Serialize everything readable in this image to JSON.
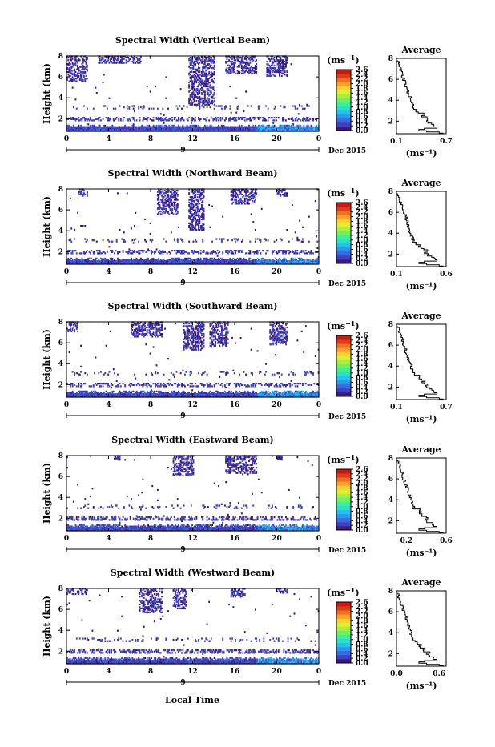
{
  "figure": {
    "xlabel": "Local Time",
    "date_label": "Dec 2015",
    "day_label": "9",
    "ylabel": "Height (km)",
    "colorbar_unit_base": "(ms",
    "colorbar_unit_exp": "−1",
    "colorbar_unit_close": ")",
    "average_title": "Average",
    "average_unit": "(ms⁻¹)",
    "colorbar_ticks": [
      "2.6",
      "2.4",
      "2.2",
      "2.0",
      "1.8",
      "1.6",
      "1.4",
      "1.2",
      "1.0",
      "0.8",
      "0.6",
      "0.4",
      "0.2",
      "0.0"
    ],
    "colormap": [
      "#3a1a7a",
      "#4040c0",
      "#3a6ae0",
      "#2f96f0",
      "#22c2ee",
      "#2ae0c8",
      "#3cf09a",
      "#6ef060",
      "#a8f040",
      "#dcf030",
      "#f8d030",
      "#f8a028",
      "#f07020",
      "#e03c18",
      "#c81a10"
    ]
  },
  "chart_data": [
    {
      "type": "heatmap",
      "title": "Spectral Width (Vertical Beam)",
      "x_ticks": [
        "0",
        "4",
        "8",
        "12",
        "16",
        "20",
        "0"
      ],
      "y_ticks": [
        "2",
        "4",
        "6",
        "8"
      ],
      "xlim": [
        0,
        24
      ],
      "ylim": [
        0.8,
        8.0
      ],
      "clim": [
        0.0,
        2.8
      ],
      "average": {
        "x_ticks": [
          "0.1",
          "0.7"
        ],
        "xlim": [
          0.1,
          0.7
        ],
        "y_ticks": [
          "2",
          "4",
          "6",
          "8"
        ],
        "ylim": [
          0.8,
          8.0
        ]
      }
    },
    {
      "type": "heatmap",
      "title": "Spectral Width (Northward Beam)",
      "x_ticks": [
        "0",
        "4",
        "8",
        "12",
        "16",
        "20",
        "0"
      ],
      "y_ticks": [
        "2",
        "4",
        "6",
        "8"
      ],
      "xlim": [
        0,
        24
      ],
      "ylim": [
        0.8,
        8.0
      ],
      "clim": [
        0.0,
        2.8
      ],
      "average": {
        "x_ticks": [
          "0.1",
          "0.6"
        ],
        "xlim": [
          0.1,
          0.6
        ],
        "y_ticks": [
          "2",
          "4",
          "6",
          "8"
        ],
        "ylim": [
          0.8,
          8.0
        ]
      }
    },
    {
      "type": "heatmap",
      "title": "Spectral Width (Southward Beam)",
      "x_ticks": [
        "0",
        "4",
        "8",
        "12",
        "16",
        "20",
        "0"
      ],
      "y_ticks": [
        "2",
        "4",
        "6",
        "8"
      ],
      "xlim": [
        0,
        24
      ],
      "ylim": [
        0.8,
        8.0
      ],
      "clim": [
        0.0,
        2.8
      ],
      "average": {
        "x_ticks": [
          "0.1",
          "0.7"
        ],
        "xlim": [
          0.1,
          0.7
        ],
        "y_ticks": [
          "2",
          "4",
          "6",
          "8"
        ],
        "ylim": [
          0.8,
          8.0
        ]
      }
    },
    {
      "type": "heatmap",
      "title": "Spectral Width (Eastward Beam)",
      "x_ticks": [
        "0",
        "4",
        "8",
        "12",
        "16",
        "20",
        "0"
      ],
      "y_ticks": [
        "2",
        "4",
        "6",
        "8"
      ],
      "xlim": [
        0,
        24
      ],
      "ylim": [
        0.8,
        8.0
      ],
      "clim": [
        0.0,
        2.8
      ],
      "average": {
        "x_ticks": [
          "0.2",
          "0.6"
        ],
        "xlim": [
          0.1,
          0.6
        ],
        "y_ticks": [
          "2",
          "4",
          "6",
          "8"
        ],
        "ylim": [
          0.8,
          8.0
        ]
      }
    },
    {
      "type": "heatmap",
      "title": "Spectral Width (Westward Beam)",
      "x_ticks": [
        "0",
        "4",
        "8",
        "12",
        "16",
        "20",
        "0"
      ],
      "y_ticks": [
        "2",
        "4",
        "6",
        "8"
      ],
      "xlim": [
        0,
        24
      ],
      "ylim": [
        0.8,
        8.0
      ],
      "clim": [
        0.0,
        2.8
      ],
      "average": {
        "x_ticks": [
          "0.0",
          "0.6"
        ],
        "xlim": [
          0.0,
          0.7
        ],
        "y_ticks": [
          "2",
          "4",
          "6",
          "8"
        ],
        "ylim": [
          0.8,
          8.0
        ]
      }
    }
  ]
}
